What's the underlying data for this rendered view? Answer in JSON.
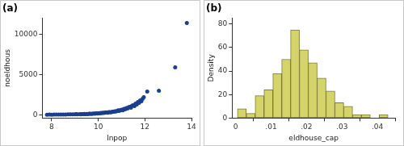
{
  "chart_data": [
    {
      "type": "scatter",
      "title": "(a)",
      "x_label": "lnpop",
      "y_label": "noeldhous",
      "x": [
        7.8,
        7.9,
        8.0,
        8.1,
        8.2,
        8.3,
        8.4,
        8.5,
        8.6,
        8.7,
        8.8,
        8.9,
        9.0,
        9.05,
        9.1,
        9.2,
        9.25,
        9.3,
        9.35,
        9.4,
        9.45,
        9.5,
        9.55,
        9.6,
        9.65,
        9.7,
        9.75,
        9.8,
        9.85,
        9.9,
        9.95,
        10.0,
        10.05,
        10.1,
        10.15,
        10.2,
        10.25,
        10.3,
        10.35,
        10.4,
        10.45,
        10.5,
        10.55,
        10.6,
        10.65,
        10.7,
        10.75,
        10.8,
        10.85,
        10.9,
        10.95,
        11.0,
        11.05,
        11.1,
        11.15,
        11.2,
        11.25,
        11.3,
        11.35,
        11.4,
        11.45,
        11.5,
        11.55,
        11.6,
        11.65,
        11.7,
        11.75,
        11.8,
        11.85,
        11.9,
        11.95,
        12.1,
        12.6,
        13.3,
        13.8
      ],
      "values": [
        20,
        30,
        25,
        40,
        35,
        30,
        45,
        50,
        40,
        60,
        55,
        70,
        60,
        80,
        75,
        90,
        70,
        100,
        85,
        110,
        95,
        120,
        100,
        130,
        140,
        120,
        150,
        160,
        140,
        180,
        170,
        200,
        190,
        230,
        210,
        260,
        240,
        280,
        300,
        270,
        330,
        350,
        320,
        400,
        380,
        450,
        420,
        500,
        560,
        480,
        600,
        650,
        560,
        750,
        700,
        850,
        800,
        950,
        1000,
        900,
        1150,
        1200,
        1100,
        1400,
        1300,
        1600,
        1500,
        1800,
        1700,
        2000,
        2200,
        2900,
        3000,
        5900,
        11400
      ],
      "color": "#1a3f8f",
      "marker": "circle",
      "xlim": [
        7.6,
        14
      ],
      "xticks": [
        8,
        10,
        12,
        14
      ],
      "ylim": [
        -400,
        12000
      ],
      "yticks": [
        0,
        5000,
        10000
      ],
      "grid": false
    },
    {
      "type": "histogram",
      "title": "(b)",
      "x_label": "eldhouse_cap",
      "y_label": "Density",
      "bins": [
        0.0005,
        0.003,
        0.0055,
        0.008,
        0.0105,
        0.013,
        0.0155,
        0.018,
        0.0205,
        0.023,
        0.0255,
        0.028,
        0.0305,
        0.033,
        0.0355,
        0.038,
        0.0405,
        0.043
      ],
      "values": [
        8,
        4,
        19,
        24,
        38,
        50,
        75,
        58,
        47,
        34,
        23,
        13,
        10,
        3,
        3,
        0,
        3
      ],
      "color": "#d4d46a",
      "xlim": [
        -0.001,
        0.045
      ],
      "xticks": [
        0,
        {
          "value": 0.01,
          "label": ".01"
        },
        {
          "value": 0.02,
          "label": ".02"
        },
        {
          "value": 0.03,
          "label": ".03"
        },
        {
          "value": 0.04,
          "label": ".04"
        }
      ],
      "ylim": [
        0,
        85
      ],
      "yticks": [
        0,
        20,
        40,
        60,
        80
      ],
      "grid": false
    }
  ]
}
